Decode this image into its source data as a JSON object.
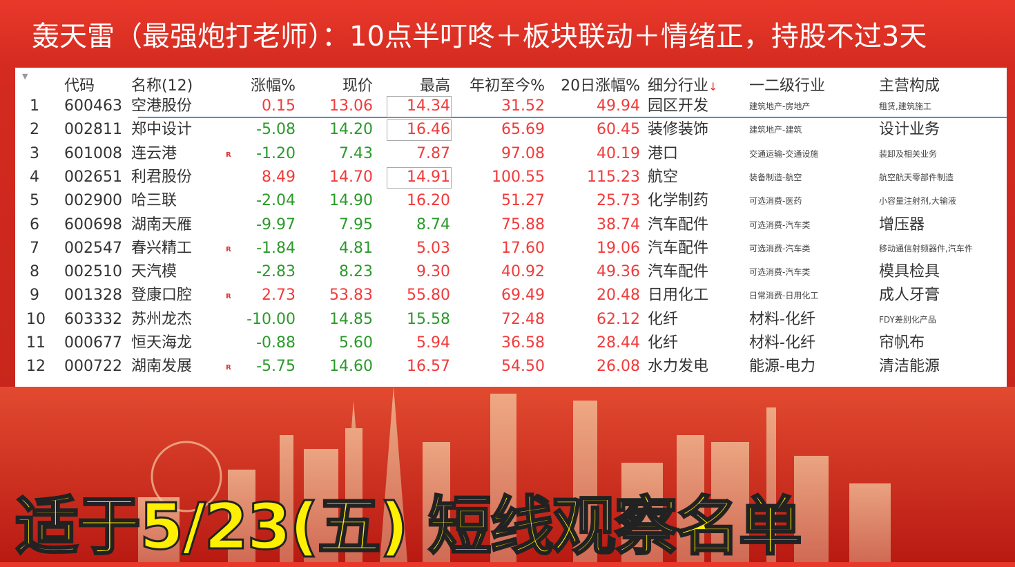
{
  "title": "轰天雷（最强炮打老师）：10点半叮咚＋板块联动＋情绪正，持股不过3天",
  "headers": {
    "code": "代码",
    "name": "名称(12)",
    "pct": "涨幅%",
    "price": "现价",
    "high": "最高",
    "ytd": "年初至今%",
    "d20": "20日涨幅%",
    "industry": "细分行业",
    "sort_mark": "↓",
    "level": "一二级行业",
    "business": "主营构成"
  },
  "colors": {
    "up": "#f23a3a",
    "down": "#2a9a2a",
    "selection": "#4a90d0"
  },
  "rows": [
    {
      "idx": "1",
      "code": "600463",
      "name": "空港股份",
      "r": "",
      "pct": "0.15",
      "price": "13.06",
      "high": "14.34",
      "ytd": "31.52",
      "d20": "49.94",
      "industry": "园区开发",
      "level": "建筑地产-房地产",
      "business": "租赁,建筑施工",
      "lv_small": true,
      "bz_small": true,
      "pc": "red",
      "hc": "red",
      "boxed": true
    },
    {
      "idx": "2",
      "code": "002811",
      "name": "郑中设计",
      "r": "",
      "pct": "-5.08",
      "price": "14.20",
      "high": "16.46",
      "ytd": "65.69",
      "d20": "60.45",
      "industry": "装修装饰",
      "level": "建筑地产-建筑",
      "business": "设计业务",
      "lv_small": true,
      "bz_small": false,
      "pc": "green",
      "hc": "red",
      "boxed": true
    },
    {
      "idx": "3",
      "code": "601008",
      "name": "连云港",
      "r": "R",
      "pct": "-1.20",
      "price": "7.43",
      "high": "7.87",
      "ytd": "97.08",
      "d20": "40.19",
      "industry": "港口",
      "level": "交通运输-交通设施",
      "business": "装卸及相关业务",
      "lv_small": true,
      "bz_small": true,
      "pc": "green",
      "hc": "red",
      "boxed": false
    },
    {
      "idx": "4",
      "code": "002651",
      "name": "利君股份",
      "r": "",
      "pct": "8.49",
      "price": "14.70",
      "high": "14.91",
      "ytd": "100.55",
      "d20": "115.23",
      "industry": "航空",
      "level": "装备制造-航空",
      "business": "航空航天零部件制造",
      "lv_small": true,
      "bz_small": true,
      "pc": "red",
      "hc": "red",
      "boxed": true
    },
    {
      "idx": "5",
      "code": "002900",
      "name": "哈三联",
      "r": "",
      "pct": "-2.04",
      "price": "14.90",
      "high": "16.20",
      "ytd": "51.27",
      "d20": "25.73",
      "industry": "化学制药",
      "level": "可选消费-医药",
      "business": "小容量注射剂,大输液",
      "lv_small": true,
      "bz_small": true,
      "pc": "green",
      "hc": "red",
      "boxed": false
    },
    {
      "idx": "6",
      "code": "600698",
      "name": "湖南天雁",
      "r": "",
      "pct": "-9.97",
      "price": "7.95",
      "high": "8.74",
      "ytd": "75.88",
      "d20": "38.74",
      "industry": "汽车配件",
      "level": "可选消费-汽车类",
      "business": "增压器",
      "lv_small": true,
      "bz_small": false,
      "pc": "green",
      "hc": "green",
      "boxed": false
    },
    {
      "idx": "7",
      "code": "002547",
      "name": "春兴精工",
      "r": "R",
      "pct": "-1.84",
      "price": "4.81",
      "high": "5.03",
      "ytd": "17.60",
      "d20": "19.06",
      "industry": "汽车配件",
      "level": "可选消费-汽车类",
      "business": "移动通信射频器件,汽车件",
      "lv_small": true,
      "bz_small": true,
      "pc": "green",
      "hc": "red",
      "boxed": false
    },
    {
      "idx": "8",
      "code": "002510",
      "name": "天汽模",
      "r": "",
      "pct": "-2.83",
      "price": "8.23",
      "high": "9.30",
      "ytd": "40.92",
      "d20": "49.36",
      "industry": "汽车配件",
      "level": "可选消费-汽车类",
      "business": "模具检具",
      "lv_small": true,
      "bz_small": false,
      "pc": "green",
      "hc": "red",
      "boxed": false
    },
    {
      "idx": "9",
      "code": "001328",
      "name": "登康口腔",
      "r": "R",
      "pct": "2.73",
      "price": "53.83",
      "high": "55.80",
      "ytd": "69.49",
      "d20": "20.48",
      "industry": "日用化工",
      "level": "日常消费-日用化工",
      "business": "成人牙膏",
      "lv_small": true,
      "bz_small": false,
      "pc": "red",
      "hc": "red",
      "boxed": false
    },
    {
      "idx": "10",
      "code": "603332",
      "name": "苏州龙杰",
      "r": "",
      "pct": "-10.00",
      "price": "14.85",
      "high": "15.58",
      "ytd": "72.48",
      "d20": "62.12",
      "industry": "化纤",
      "level": "材料-化纤",
      "business": "FDY差别化产品",
      "lv_small": false,
      "bz_small": true,
      "pc": "green",
      "hc": "green",
      "boxed": false
    },
    {
      "idx": "11",
      "code": "000677",
      "name": "恒天海龙",
      "r": "",
      "pct": "-0.88",
      "price": "5.60",
      "high": "5.94",
      "ytd": "36.58",
      "d20": "28.44",
      "industry": "化纤",
      "level": "材料-化纤",
      "business": "帘帆布",
      "lv_small": false,
      "bz_small": false,
      "pc": "green",
      "hc": "red",
      "boxed": false
    },
    {
      "idx": "12",
      "code": "000722",
      "name": "湖南发展",
      "r": "R",
      "pct": "-5.75",
      "price": "14.60",
      "high": "16.57",
      "ytd": "54.50",
      "d20": "26.08",
      "industry": "水力发电",
      "level": "能源-电力",
      "business": "清洁能源",
      "lv_small": false,
      "bz_small": false,
      "pc": "green",
      "hc": "red",
      "boxed": false
    }
  ],
  "banner": "适于5/23(五) 短线观察名单"
}
